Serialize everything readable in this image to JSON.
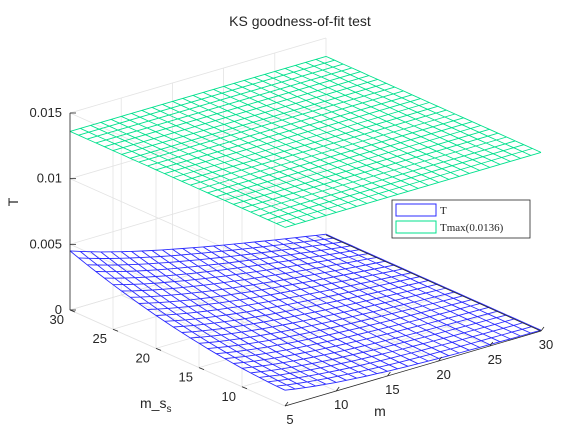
{
  "chart_data": {
    "type": "surface3d",
    "title": "KS goodness-of-fit test",
    "xlabel": "m",
    "ylabel": "m_s",
    "zlabel": "T",
    "x_ticks": [
      "5",
      "10",
      "15",
      "20",
      "25",
      "30"
    ],
    "y_ticks": [
      "10",
      "15",
      "20",
      "25",
      "30"
    ],
    "z_ticks": [
      "0",
      "0.005",
      "0.01",
      "0.015"
    ],
    "xlim": [
      5,
      30
    ],
    "ylim": [
      5,
      30
    ],
    "zlim": [
      0,
      0.015
    ],
    "grid": true,
    "legend_position": "right",
    "series": [
      {
        "name": "T",
        "surface": "T(m, m_s)",
        "z_range": [
          0,
          0.0047
        ],
        "grid_size": 26,
        "color": "#2b2bff"
      },
      {
        "name": "Tmax(0.0136)",
        "constant": 0.0136,
        "grid_size": 26,
        "color": "#00e08c"
      }
    ],
    "ylabel_sub": "s"
  }
}
